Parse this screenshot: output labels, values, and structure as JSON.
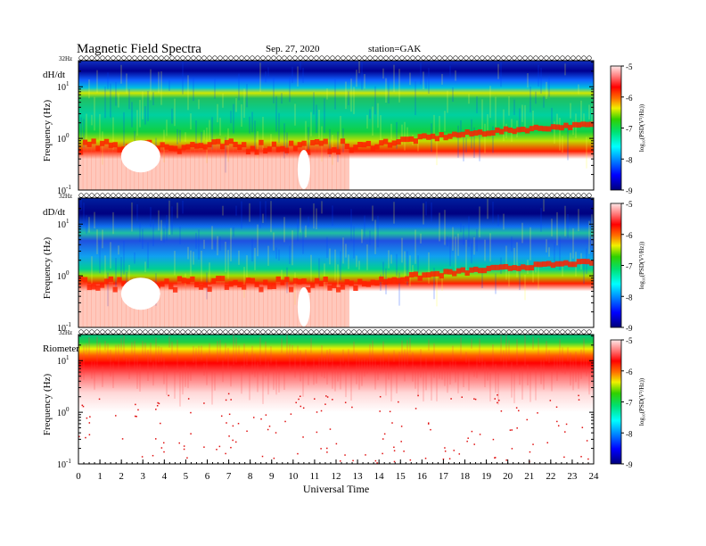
{
  "header": {
    "title": "Magnetic Field Spectra",
    "date": "Sep. 27, 2020",
    "station": "station=GAK"
  },
  "chart_data": {
    "type": "heatmap",
    "xlabel": "Universal Time",
    "xlim": [
      0,
      24
    ],
    "x_ticks": [
      "0",
      "1",
      "2",
      "3",
      "4",
      "5",
      "6",
      "7",
      "8",
      "9",
      "10",
      "11",
      "12",
      "13",
      "14",
      "15",
      "16",
      "17",
      "18",
      "19",
      "20",
      "21",
      "22",
      "23",
      "24"
    ],
    "colorbar": {
      "label": "log₁₀(PSD(V²/Hz))",
      "range": [
        -9,
        -5
      ],
      "ticks": [
        "-5",
        "-6",
        "-7",
        "-8",
        "-9"
      ]
    },
    "panels": [
      {
        "name": "dH/dt",
        "ylabel": "Frequency (Hz)",
        "scale": "log",
        "ylim": [
          0.1,
          32
        ],
        "top_label": "32Hz",
        "y_ticks": [
          {
            "value": 10,
            "base": "10",
            "exp": "1"
          },
          {
            "value": 1,
            "base": "10",
            "exp": "0"
          },
          {
            "value": 0.1,
            "base": "10",
            "exp": "-1"
          }
        ]
      },
      {
        "name": "dD/dt",
        "ylabel": "Frequency (Hz)",
        "scale": "log",
        "ylim": [
          0.1,
          32
        ],
        "top_label": "32Hz",
        "y_ticks": [
          {
            "value": 10,
            "base": "10",
            "exp": "1"
          },
          {
            "value": 1,
            "base": "10",
            "exp": "0"
          },
          {
            "value": 0.1,
            "base": "10",
            "exp": "-1"
          }
        ]
      },
      {
        "name": "Riometer",
        "ylabel": "Frequency (Hz)",
        "scale": "log",
        "ylim": [
          0.1,
          32
        ],
        "top_label": "32Hz",
        "y_ticks": [
          {
            "value": 10,
            "base": "10",
            "exp": "1"
          },
          {
            "value": 1,
            "base": "10",
            "exp": "0"
          },
          {
            "value": 0.1,
            "base": "10",
            "exp": "-1"
          }
        ]
      }
    ]
  }
}
